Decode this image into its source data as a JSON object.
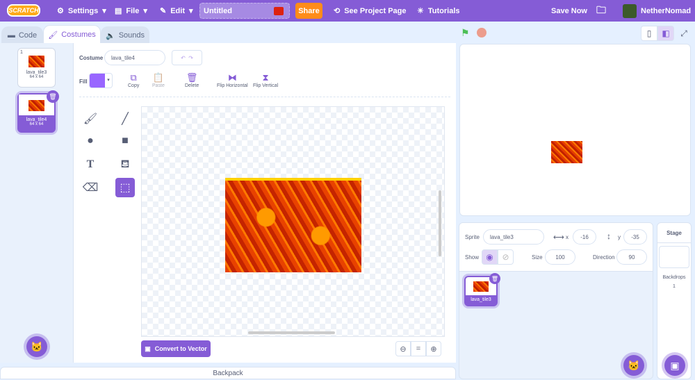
{
  "menubar": {
    "logo": "SCRATCH",
    "settings": "Settings",
    "file": "File",
    "edit": "Edit",
    "project_title": "Untitled",
    "share": "Share",
    "see_project_page": "See Project Page",
    "tutorials": "Tutorials",
    "save_now": "Save Now",
    "username": "NetherNomad"
  },
  "tabs": [
    {
      "label": "Code"
    },
    {
      "label": "Costumes"
    },
    {
      "label": "Sounds"
    }
  ],
  "costumes": [
    {
      "index": "1",
      "name": "lava_tile3",
      "size": "64 x 64"
    },
    {
      "index": "2",
      "name": "lava_tile4",
      "size": "64 x 64"
    }
  ],
  "editor": {
    "costume_label": "Costume",
    "costume_name": "lava_tile4",
    "fill_label": "Fill",
    "fill_color": "#9966ff",
    "copy": "Copy",
    "paste": "Paste",
    "delete": "Delete",
    "flip_h": "Flip Horizontal",
    "flip_v": "Flip Vertical",
    "convert": "Convert to Vector",
    "zoom_reset": "="
  },
  "sprite_info": {
    "sprite_label": "Sprite",
    "sprite_name": "lava_tile3",
    "x_label": "x",
    "x": "-16",
    "y_label": "y",
    "y": "-35",
    "show_label": "Show",
    "size_label": "Size",
    "size": "100",
    "direction_label": "Direction",
    "direction": "90"
  },
  "sprites": [
    {
      "name": "lava_tile3"
    }
  ],
  "stage_pane": {
    "title": "Stage",
    "backdrops_label": "Backdrops",
    "backdrops_count": "1"
  },
  "backpack": "Backpack",
  "colors": {
    "accent": "#855cd6",
    "share": "#ff8c1a",
    "background": "#e5f0ff"
  }
}
